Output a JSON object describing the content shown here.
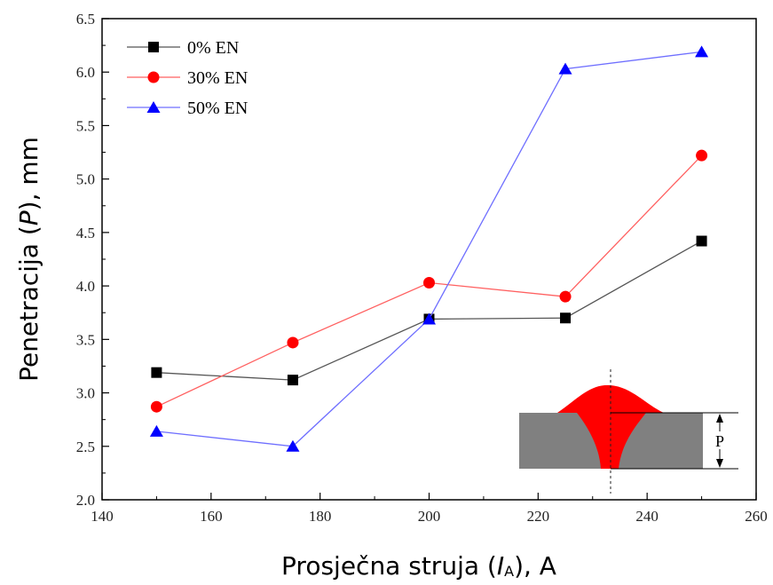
{
  "chart_data": {
    "type": "line",
    "x": [
      150,
      175,
      200,
      225,
      250
    ],
    "series": [
      {
        "name": "0% EN",
        "color": "#000000",
        "marker": "square",
        "line_color": "#555555",
        "values": [
          3.19,
          3.12,
          3.69,
          3.7,
          4.42
        ]
      },
      {
        "name": "30% EN",
        "color": "#ff0000",
        "marker": "circle",
        "line_color": "#ff6060",
        "values": [
          2.87,
          3.47,
          4.03,
          3.9,
          5.22
        ]
      },
      {
        "name": "50% EN",
        "color": "#0000ff",
        "marker": "triangle",
        "line_color": "#6f6fff",
        "values": [
          2.64,
          2.5,
          3.69,
          6.03,
          6.19
        ]
      }
    ],
    "xlim": [
      140,
      260
    ],
    "ylim": [
      2.0,
      6.5
    ],
    "xticks": [
      "140",
      "160",
      "180",
      "200",
      "220",
      "240",
      "260"
    ],
    "yticks": [
      "2.0",
      "2.5",
      "3.0",
      "3.5",
      "4.0",
      "4.5",
      "5.0",
      "5.5",
      "6.0",
      "6.5"
    ],
    "xlabel": {
      "main": "Prosječna struja (",
      "var": "I",
      "sub": "A",
      "tail": "), A"
    },
    "ylabel": {
      "main": "Penetracija (",
      "var": "P",
      "tail": "), mm"
    },
    "legend_position": "top-left",
    "grid": false,
    "inset": {
      "label": "P",
      "base_color": "#808080",
      "weld_color": "#ff0000"
    }
  }
}
